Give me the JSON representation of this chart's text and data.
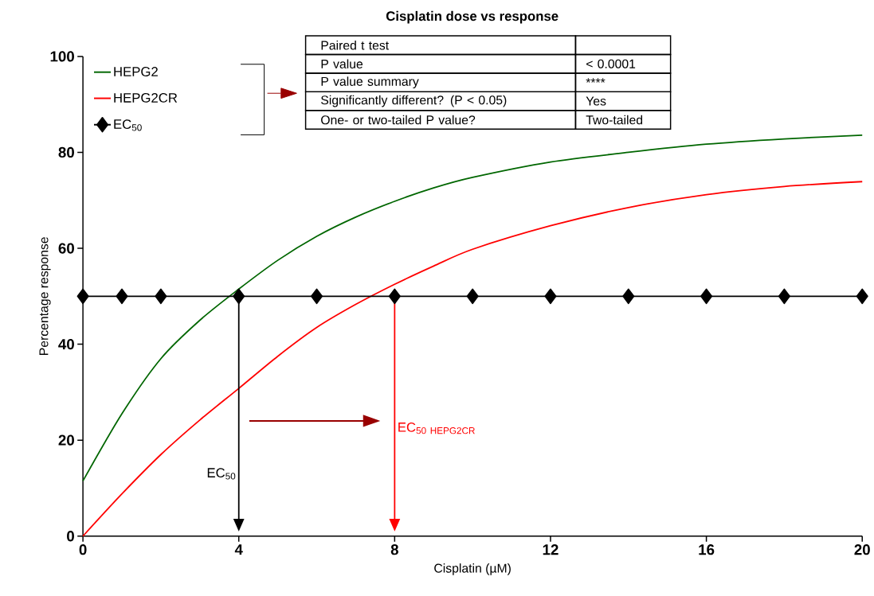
{
  "chart_data": {
    "type": "line",
    "title": "Cisplatin dose vs response",
    "xlabel": "Cisplatin (µM)",
    "ylabel": "Percentage response",
    "x": [
      0,
      1,
      2,
      3,
      4,
      5,
      6,
      7,
      8,
      9,
      10,
      12,
      14,
      16,
      18,
      20
    ],
    "series": [
      {
        "name": "HEPG2",
        "color": "#006600",
        "values": [
          11.5,
          25.5,
          37,
          45,
          51.5,
          57.5,
          62.5,
          66.5,
          69.8,
          72.6,
          74.8,
          78,
          80,
          81.7,
          82.8,
          83.6
        ]
      },
      {
        "name": "HEPG2CR",
        "color": "#ff0000",
        "values": [
          0,
          8.8,
          17,
          24.2,
          30.8,
          37.5,
          43.5,
          48.3,
          52.5,
          56.3,
          59.8,
          64.7,
          68.5,
          71.2,
          72.9,
          73.9
        ]
      },
      {
        "name": "EC$_{50}$",
        "color": "#000000",
        "marker": "diamond",
        "x": [
          0,
          1,
          2,
          4,
          6,
          8,
          10,
          12,
          14,
          16,
          18,
          20
        ],
        "values": [
          50,
          50,
          50,
          50,
          50,
          50,
          50,
          50,
          50,
          50,
          50,
          50
        ]
      }
    ],
    "xlim": [
      0,
      20
    ],
    "ylim": [
      0,
      100
    ],
    "xticks": [
      0,
      4,
      8,
      12,
      16,
      20
    ],
    "yticks": [
      0,
      20,
      40,
      60,
      80,
      100
    ],
    "legend": "top left",
    "marker": "none",
    "ref_lines": [
      {
        "axis": "x",
        "value": 4,
        "label": "\\mathrm{EC_{50}}",
        "color": "#000000"
      },
      {
        "axis": "x",
        "value": 8,
        "label": "\\mathrm{EC_{50\\ HEPG2CR}}",
        "color": "#ff0000"
      }
    ],
    "annotations": [
      "Paired t test",
      "P value",
      "< 0.0001",
      "P value summary",
      "****",
      "Significantly different? (P < 0.05)",
      "Yes",
      "One- or two-tailed P value?",
      "Two-tailed"
    ]
  }
}
